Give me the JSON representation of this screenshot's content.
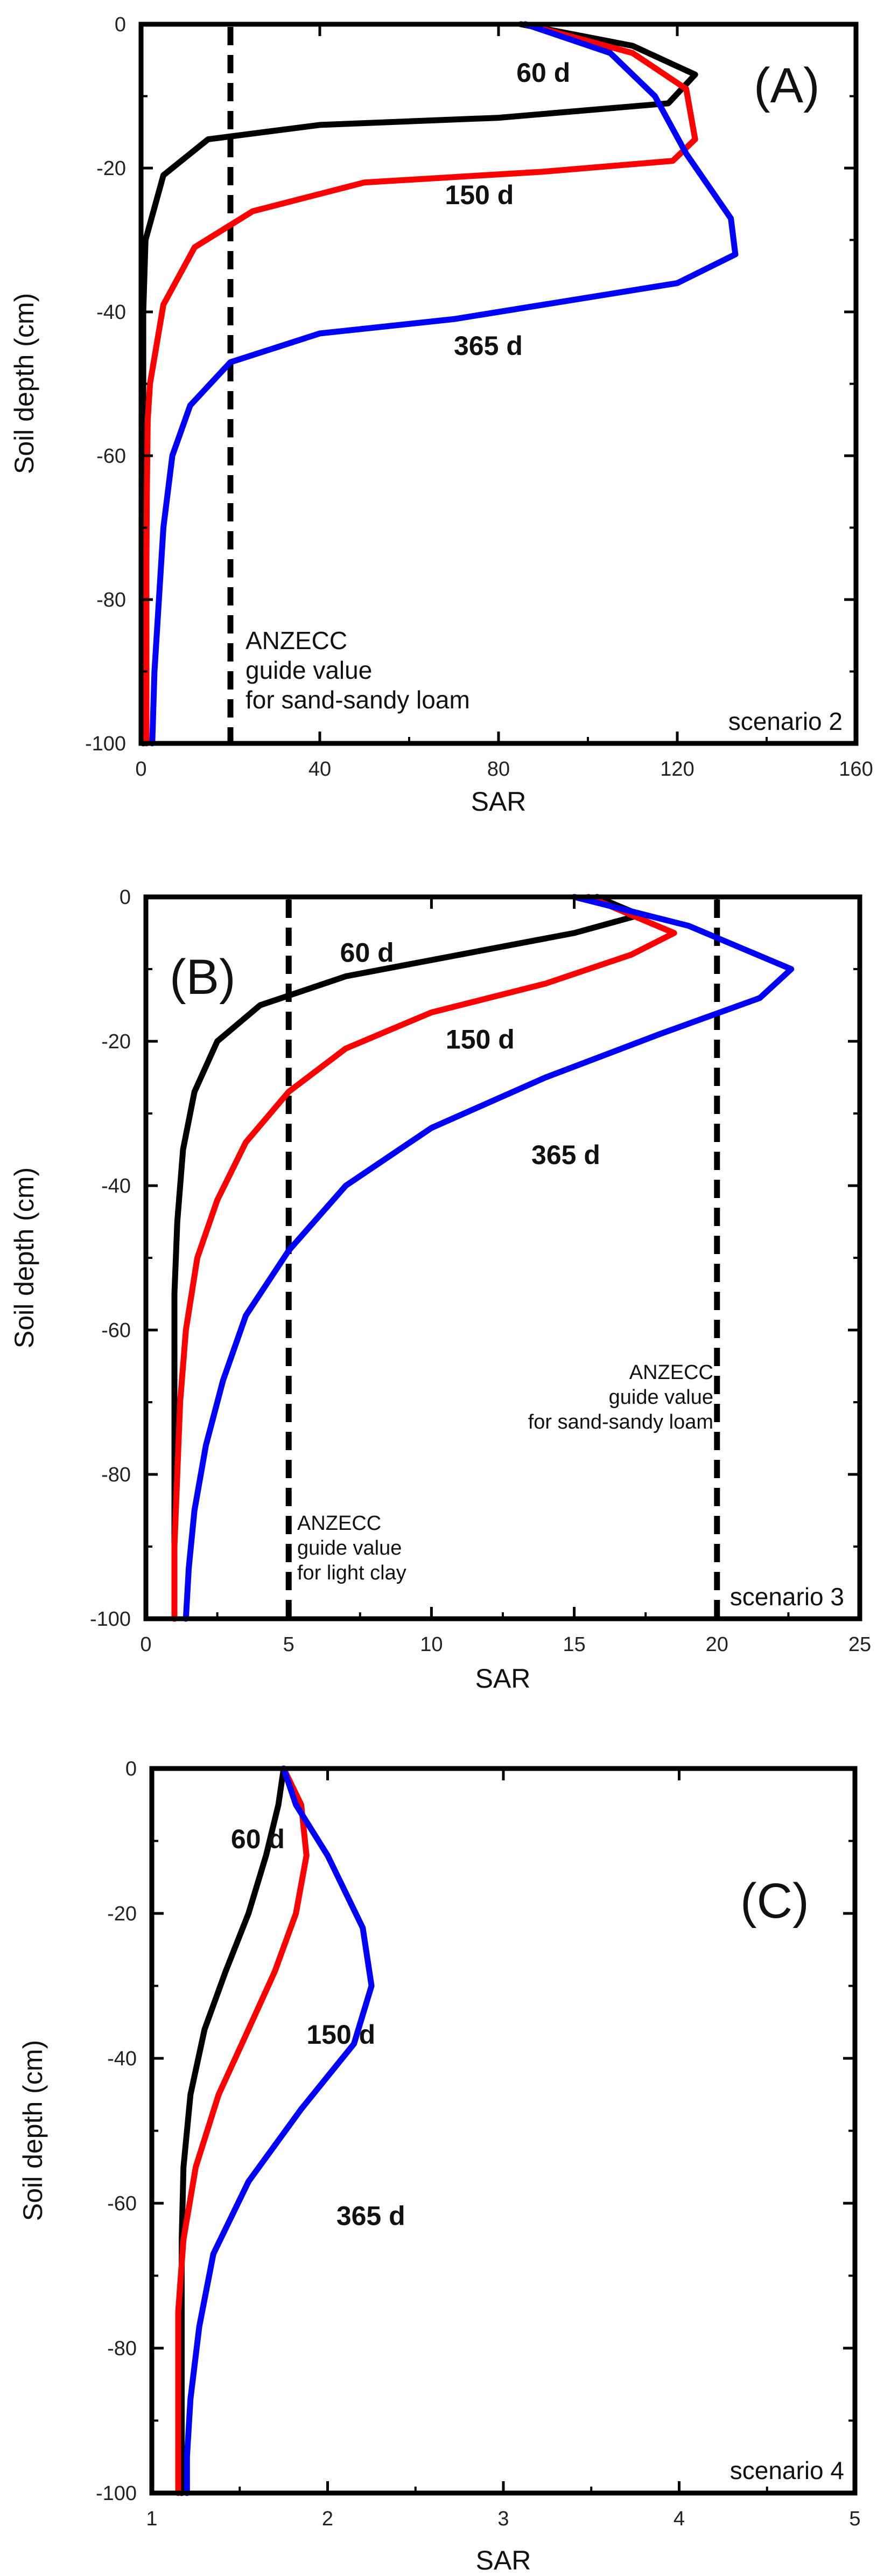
{
  "chart_data": [
    {
      "type": "line",
      "panel_tag": "(A)",
      "xlabel": "SAR",
      "ylabel": "Soil depth (cm)",
      "xlim": [
        0,
        160
      ],
      "ylim": [
        -100,
        0
      ],
      "x_ticks": [
        "0",
        "40",
        "80",
        "120",
        "160"
      ],
      "y_ticks": [
        "0",
        "-20",
        "-40",
        "-60",
        "-80",
        "-100"
      ],
      "scenario_label": "scenario 2",
      "annotation_lines": [
        "ANZECC",
        "guide value",
        "for sand-sandy loam"
      ],
      "guide_value_sar": 20,
      "series": [
        {
          "name": "60 d",
          "color": "#000000",
          "x": [
            85,
            110,
            124,
            118,
            80,
            40,
            15,
            5,
            1,
            0.5,
            0.5,
            0.5,
            0.5,
            0.5,
            0.5,
            0.5,
            0.5
          ],
          "y": [
            0,
            -3,
            -7,
            -11,
            -13,
            -14,
            -16,
            -21,
            -30,
            -40,
            -50,
            -60,
            -70,
            -80,
            -90,
            -97,
            -100
          ]
        },
        {
          "name": "150 d",
          "color": "#ff0000",
          "x": [
            86,
            110,
            122,
            124,
            119,
            90,
            50,
            25,
            12,
            5,
            2,
            1.5,
            1.3,
            1.2,
            1.2,
            1.2,
            1.2
          ],
          "y": [
            0,
            -4,
            -9,
            -16,
            -19,
            -20.5,
            -22,
            -26,
            -31,
            -39,
            -50,
            -55,
            -65,
            -75,
            -85,
            -95,
            -100
          ]
        },
        {
          "name": "365 d",
          "color": "#0000ff",
          "x": [
            86,
            105,
            115,
            122,
            132,
            133,
            120,
            100,
            70,
            40,
            20,
            11,
            7,
            5,
            4,
            3,
            2.5
          ],
          "y": [
            0,
            -4,
            -10,
            -18,
            -27,
            -32,
            -36,
            -38,
            -41,
            -43,
            -47,
            -53,
            -60,
            -70,
            -80,
            -90,
            -100
          ]
        }
      ],
      "curve_labels": [
        {
          "text": "60 d",
          "x": 84,
          "y": -8
        },
        {
          "text": "150 d",
          "x": 68,
          "y": -25
        },
        {
          "text": "365 d",
          "x": 70,
          "y": -46
        }
      ]
    },
    {
      "type": "line",
      "panel_tag": "(B)",
      "xlabel": "SAR",
      "ylabel": "Soil depth (cm)",
      "xlim": [
        0,
        25
      ],
      "ylim": [
        -100,
        0
      ],
      "x_ticks": [
        "0",
        "5",
        "10",
        "15",
        "20",
        "25"
      ],
      "y_ticks": [
        "0",
        "-20",
        "-40",
        "-60",
        "-80",
        "-100"
      ],
      "scenario_label": "scenario 3",
      "annotation_light_clay": [
        "ANZECC",
        "guide value",
        "for light clay"
      ],
      "annotation_sand": [
        "ANZECC",
        "guide value",
        "for sand-sandy loam"
      ],
      "guide_values_sar": [
        5,
        20
      ],
      "series": [
        {
          "name": "60 d",
          "color": "#000000",
          "x": [
            15.8,
            17.3,
            15,
            11,
            7,
            4,
            2.5,
            1.7,
            1.3,
            1.1,
            1.0,
            1.0,
            1.0,
            1.0,
            1.0
          ],
          "y": [
            0,
            -2.5,
            -5,
            -8,
            -11,
            -15,
            -20,
            -27,
            -35,
            -45,
            -55,
            -65,
            -75,
            -90,
            -100
          ]
        },
        {
          "name": "150 d",
          "color": "#ff0000",
          "x": [
            15.5,
            18.5,
            17,
            14,
            10,
            7,
            5,
            3.5,
            2.5,
            1.8,
            1.4,
            1.2,
            1.1,
            1.0,
            1.0
          ],
          "y": [
            0,
            -5,
            -8,
            -12,
            -16,
            -21,
            -27,
            -34,
            -42,
            -50,
            -60,
            -70,
            -80,
            -90,
            -100
          ]
        },
        {
          "name": "365 d",
          "color": "#0000ff",
          "x": [
            15,
            19,
            22.6,
            21.5,
            18,
            14,
            10,
            7,
            5,
            3.5,
            2.7,
            2.1,
            1.7,
            1.5,
            1.4
          ],
          "y": [
            0,
            -4,
            -10,
            -14,
            -19,
            -25,
            -32,
            -40,
            -49,
            -58,
            -67,
            -76,
            -85,
            -93,
            -100
          ]
        }
      ],
      "curve_labels": [
        {
          "text": "60 d",
          "x": 6.8,
          "y": -9
        },
        {
          "text": "150 d",
          "x": 10.5,
          "y": -21
        },
        {
          "text": "365 d",
          "x": 13.5,
          "y": -37
        }
      ]
    },
    {
      "type": "line",
      "panel_tag": "(C)",
      "xlabel": "SAR",
      "ylabel": "Soil depth (cm)",
      "xlim": [
        1,
        5
      ],
      "ylim": [
        -100,
        0
      ],
      "x_ticks": [
        "1",
        "2",
        "3",
        "4",
        "5"
      ],
      "y_ticks": [
        "0",
        "-20",
        "-40",
        "-60",
        "-80",
        "-100"
      ],
      "scenario_label": "scenario 4",
      "series": [
        {
          "name": "60 d",
          "color": "#000000",
          "x": [
            1.75,
            1.72,
            1.65,
            1.55,
            1.42,
            1.3,
            1.22,
            1.18,
            1.17,
            1.17,
            1.17,
            1.17,
            1.17
          ],
          "y": [
            0,
            -5,
            -12,
            -20,
            -28,
            -36,
            -45,
            -55,
            -65,
            -75,
            -85,
            -95,
            -100
          ]
        },
        {
          "name": "150 d",
          "color": "#ff0000",
          "x": [
            1.75,
            1.85,
            1.88,
            1.82,
            1.7,
            1.55,
            1.38,
            1.25,
            1.18,
            1.15,
            1.15,
            1.15,
            1.15
          ],
          "y": [
            0,
            -5,
            -12,
            -20,
            -28,
            -36,
            -45,
            -55,
            -65,
            -75,
            -85,
            -95,
            -100
          ]
        },
        {
          "name": "365 d",
          "color": "#0000ff",
          "x": [
            1.75,
            1.82,
            2.0,
            2.2,
            2.25,
            2.15,
            1.85,
            1.55,
            1.35,
            1.27,
            1.22,
            1.2,
            1.2
          ],
          "y": [
            0,
            -5,
            -12,
            -22,
            -30,
            -38,
            -47,
            -57,
            -67,
            -77,
            -87,
            -95,
            -100
          ]
        }
      ],
      "curve_labels": [
        {
          "text": "60 d",
          "x": 1.45,
          "y": -11
        },
        {
          "text": "150 d",
          "x": 1.88,
          "y": -38
        },
        {
          "text": "365 d",
          "x": 2.05,
          "y": -63
        }
      ]
    }
  ]
}
